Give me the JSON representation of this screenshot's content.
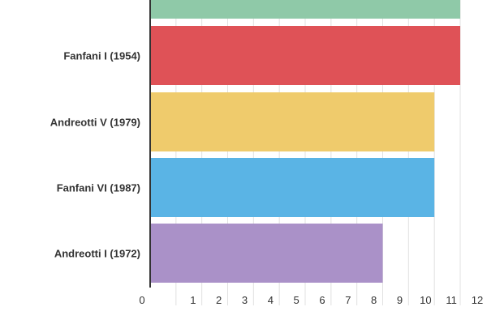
{
  "chart_data": {
    "type": "bar",
    "orientation": "horizontal",
    "categories": [
      "",
      "Fanfani I (1954)",
      "Andreotti V (1979)",
      "Fanfani VI (1987)",
      "Andreotti I (1972)"
    ],
    "values": [
      12,
      12,
      11,
      11,
      9
    ],
    "bar_colors": [
      "#8fc9a8",
      "#df5257",
      "#efcb6c",
      "#5ab4e5",
      "#aa91c8"
    ],
    "xlim": [
      0,
      12
    ],
    "x_ticks": [
      0,
      1,
      2,
      3,
      4,
      5,
      6,
      7,
      8,
      9,
      10,
      11,
      12
    ],
    "grid": true,
    "title": "",
    "xlabel": "",
    "ylabel": ""
  }
}
